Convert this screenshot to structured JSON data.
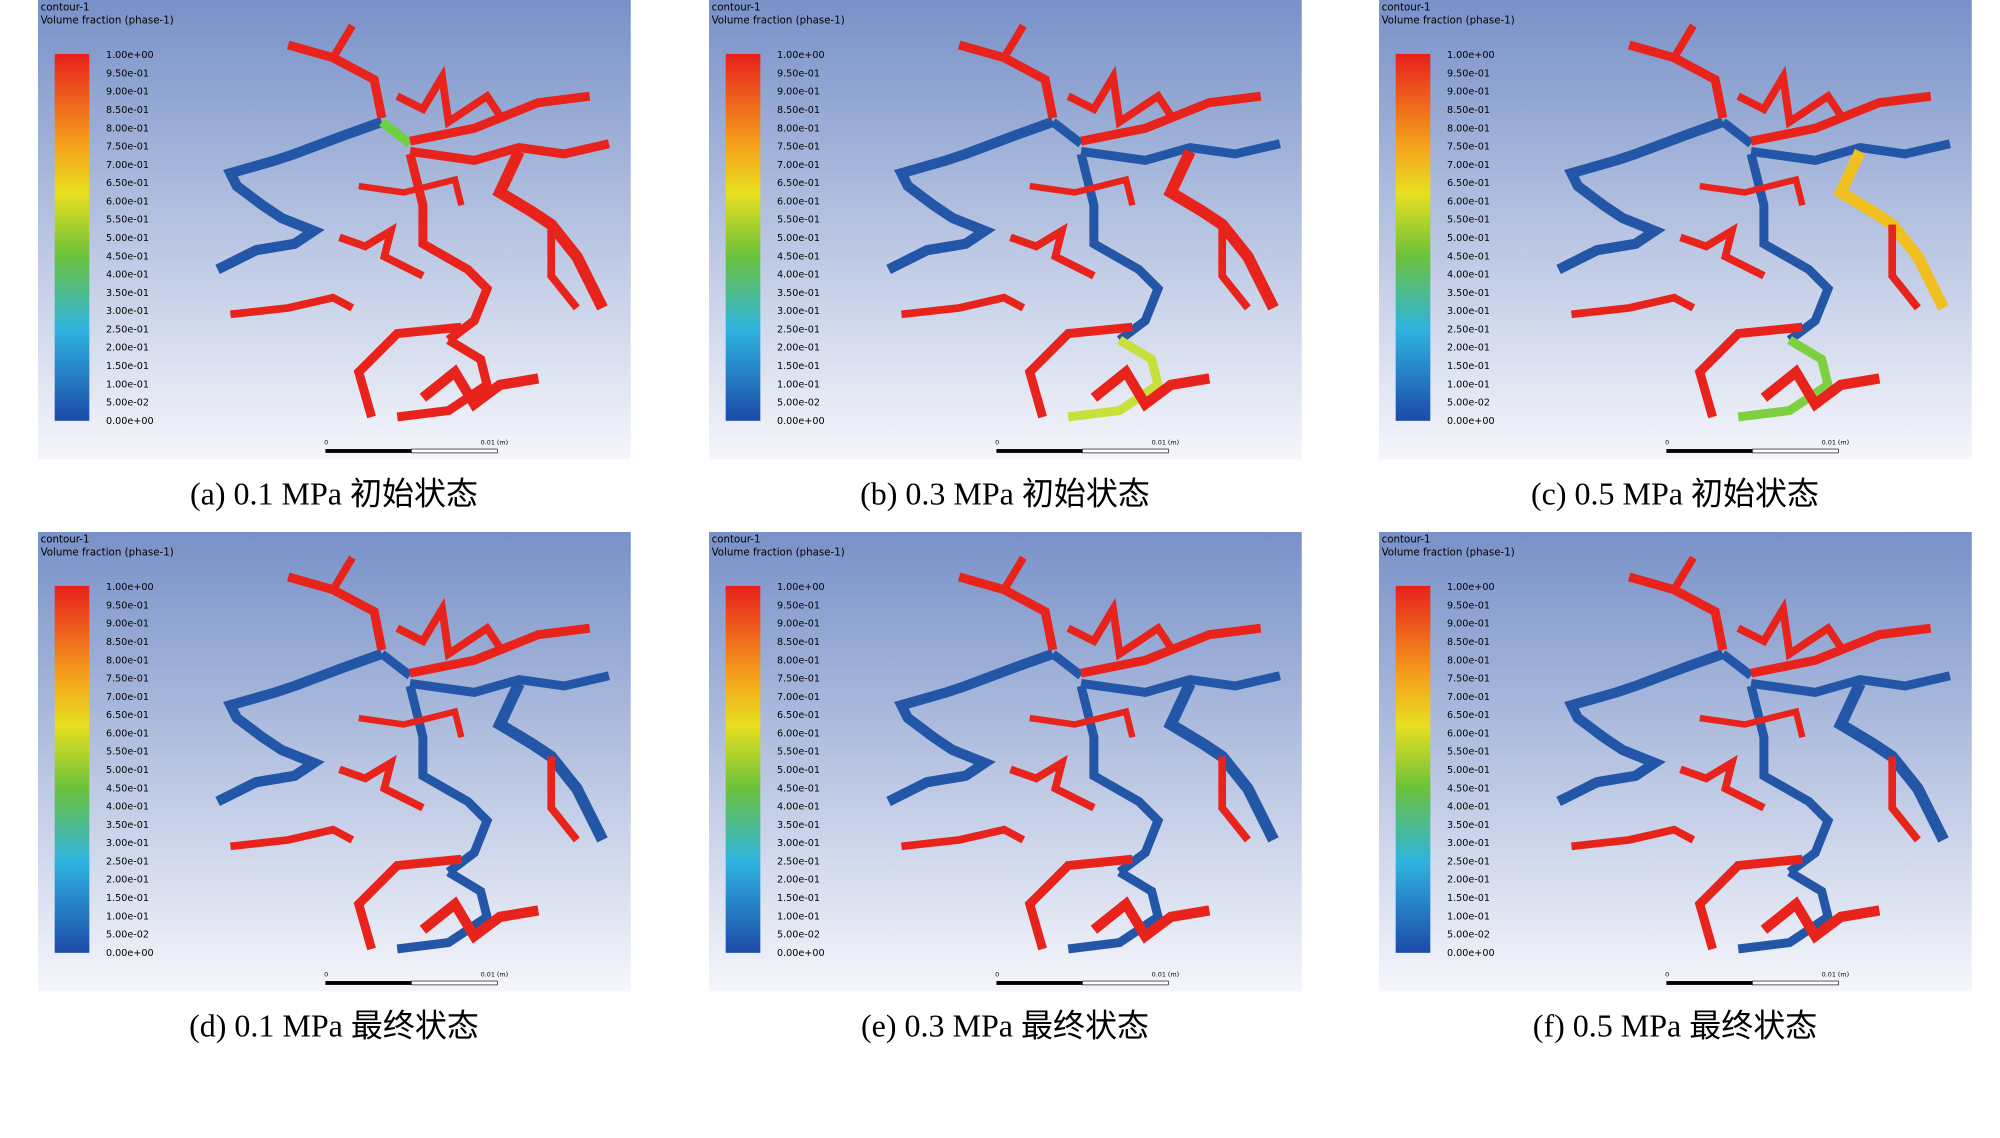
{
  "contour": {
    "name": "contour-1",
    "variable": "Volume fraction (phase-1)",
    "legend_labels": [
      "1.00e+00",
      "9.50e-01",
      "9.00e-01",
      "8.50e-01",
      "8.00e-01",
      "7.50e-01",
      "7.00e-01",
      "6.50e-01",
      "6.00e-01",
      "5.50e-01",
      "5.00e-01",
      "4.50e-01",
      "4.00e-01",
      "3.50e-01",
      "3.00e-01",
      "2.50e-01",
      "2.00e-01",
      "1.50e-01",
      "1.00e-01",
      "5.00e-02",
      "0.00e+00"
    ],
    "scale_bar": {
      "start": "0",
      "end": "0.01 (m)"
    }
  },
  "panels": [
    {
      "caption": "(a) 0.1 MPa 初始状态"
    },
    {
      "caption": "(b) 0.3 MPa 初始状态"
    },
    {
      "caption": "(c) 0.5 MPa 初始状态"
    },
    {
      "caption": "(d) 0.1 MPa 最终状态"
    },
    {
      "caption": "(e) 0.3 MPa 最终状态"
    },
    {
      "caption": "(f) 0.5 MPa 最终状态"
    }
  ]
}
